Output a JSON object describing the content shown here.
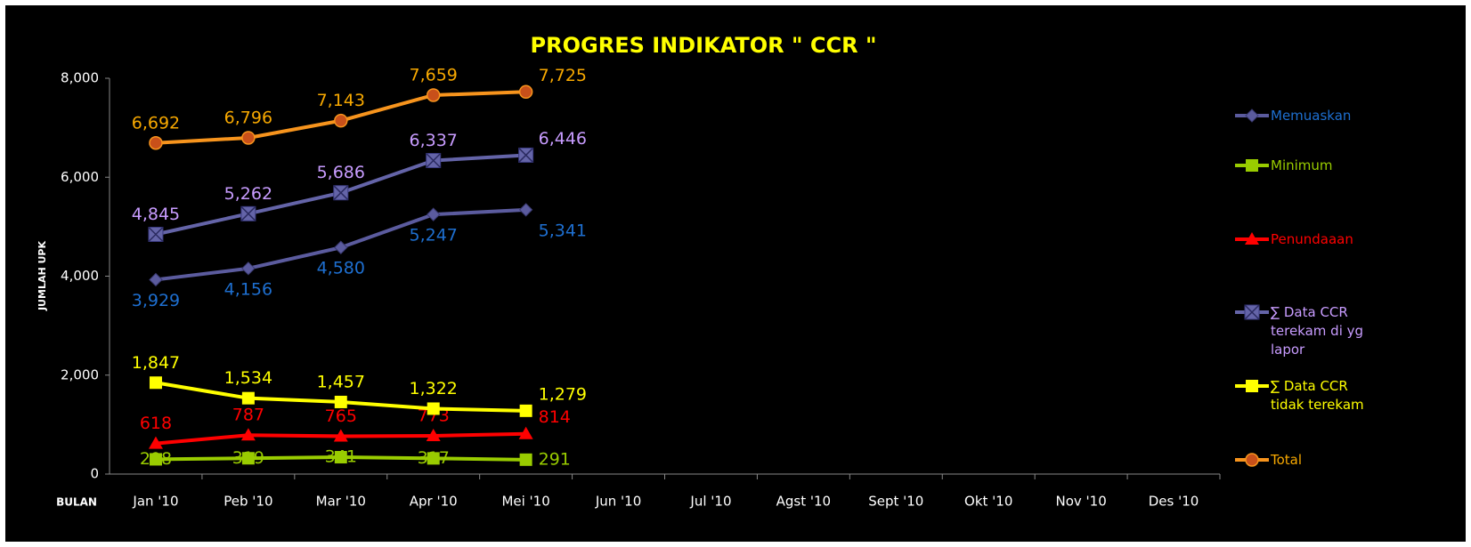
{
  "chart_data": {
    "type": "line",
    "title": "PROGRES INDIKATOR \" CCR \"",
    "y_label": "JUMLAH UPK",
    "x_label": "BULAN",
    "categories": [
      "Jan '10",
      "Peb '10",
      "Mar '10",
      "Apr '10",
      "Mei '10",
      "Jun '10",
      "Jul '10",
      "Agst '10",
      "Sept '10",
      "Okt '10",
      "Nov '10",
      "Des '10"
    ],
    "ylim": [
      0,
      8000
    ],
    "yticks": [
      0,
      {
        "value": 2000,
        "label": "2,000"
      },
      {
        "value": 4000,
        "label": "4,000"
      },
      {
        "value": 6000,
        "label": "6,000"
      },
      {
        "value": 8000,
        "label": "8,000"
      }
    ],
    "series": [
      {
        "name": "Memuaskan",
        "color": "#5b5b9e",
        "label_color": "#1e6fd0",
        "marker": "diamond",
        "values": [
          3929,
          4156,
          4580,
          5247,
          5341,
          null,
          null,
          null,
          null,
          null,
          null,
          null
        ],
        "value_labels": [
          "3,929",
          "4,156",
          "4,580",
          "5,247",
          "5,341",
          null,
          null,
          null,
          null,
          null,
          null,
          null
        ]
      },
      {
        "name": "Minimum",
        "color": "#99cc00",
        "label_color": "#99cc00",
        "marker": "square",
        "values": [
          298,
          319,
          341,
          317,
          291,
          null,
          null,
          null,
          null,
          null,
          null,
          null
        ],
        "value_labels": [
          "298",
          "319",
          "341",
          "317",
          "291",
          null,
          null,
          null,
          null,
          null,
          null,
          null
        ]
      },
      {
        "name": "Penundaaan",
        "color": "#ff0000",
        "label_color": "#ff0000",
        "marker": "triangle",
        "values": [
          618,
          787,
          765,
          773,
          814,
          null,
          null,
          null,
          null,
          null,
          null,
          null
        ],
        "value_labels": [
          "618",
          "787",
          "765",
          "773",
          "814",
          null,
          null,
          null,
          null,
          null,
          null,
          null
        ]
      },
      {
        "name": "∑ Data CCR terekam di yg lapor",
        "color": "#6464a8",
        "label_color": "#c89cff",
        "marker": "xsquare",
        "values": [
          4845,
          5262,
          5686,
          6337,
          6446,
          null,
          null,
          null,
          null,
          null,
          null,
          null
        ],
        "value_labels": [
          "4,845",
          "5,262",
          "5,686",
          "6,337",
          "6,446",
          null,
          null,
          null,
          null,
          null,
          null,
          null
        ]
      },
      {
        "name": "∑ Data CCR tidak terekam",
        "color": "#ffff00",
        "label_color": "#ffff00",
        "marker": "square",
        "values": [
          1847,
          1534,
          1457,
          1322,
          1279,
          null,
          null,
          null,
          null,
          null,
          null,
          null
        ],
        "value_labels": [
          "1,847",
          "1,534",
          "1,457",
          "1,322",
          "1,279",
          null,
          null,
          null,
          null,
          null,
          null,
          null
        ]
      },
      {
        "name": "Total",
        "color": "#f7941d",
        "label_color": "#f7a800",
        "marker": "circle",
        "values": [
          6692,
          6796,
          7143,
          7659,
          7725,
          null,
          null,
          null,
          null,
          null,
          null,
          null
        ],
        "value_labels": [
          "6,692",
          "6,796",
          "7,143",
          "7,659",
          "7,725",
          null,
          null,
          null,
          null,
          null,
          null,
          null
        ]
      }
    ]
  }
}
